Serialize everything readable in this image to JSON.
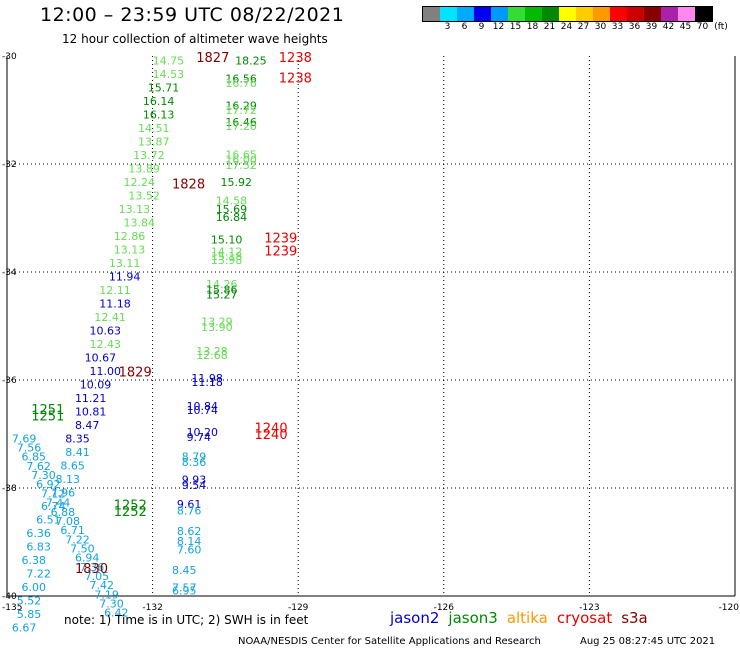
{
  "header": {
    "title": "12:00 – 23:59 UTC 08/22/2021",
    "subtitle": "12 hour collection of altimeter wave heights"
  },
  "legend": {
    "unit": "(ft)",
    "swatches": [
      {
        "color": "#808080",
        "label": ""
      },
      {
        "color": "#00e5ff",
        "label": "3"
      },
      {
        "color": "#00aaff",
        "label": "6"
      },
      {
        "color": "#0000ee",
        "label": "9"
      },
      {
        "color": "#0099ff",
        "label": "12"
      },
      {
        "color": "#33dd33",
        "label": "15"
      },
      {
        "color": "#00bb00",
        "label": "18"
      },
      {
        "color": "#008800",
        "label": "21"
      },
      {
        "color": "#ffff00",
        "label": "24"
      },
      {
        "color": "#ffcc00",
        "label": "27"
      },
      {
        "color": "#ff9900",
        "label": "30"
      },
      {
        "color": "#ff0000",
        "label": "33"
      },
      {
        "color": "#cc0000",
        "label": "36"
      },
      {
        "color": "#880000",
        "label": "39"
      },
      {
        "color": "#aa22aa",
        "label": "42"
      },
      {
        "color": "#ff88ee",
        "label": "45"
      },
      {
        "color": "#000000",
        "label": "70"
      }
    ]
  },
  "map": {
    "longitudes": [
      "-135",
      "-132",
      "-129",
      "-126",
      "-123",
      "-120"
    ],
    "latitudes": [
      "-30",
      "-32",
      "-34",
      "-36",
      "-38",
      "-40"
    ],
    "colors": {
      "light_green": "#66dd55",
      "green": "#008800",
      "blue": "#0000cc",
      "cyan": "#11a3dd",
      "red": "#ee0000",
      "dark_red": "#880000"
    },
    "pass_labels": [
      {
        "text": "1827",
        "x": -131.1,
        "y": -30.04,
        "color": "dark_red"
      },
      {
        "text": "1238",
        "x": -129.4,
        "y": -30.04,
        "color": "red"
      },
      {
        "text": "1238",
        "x": -129.4,
        "y": -30.42,
        "color": "red"
      },
      {
        "text": "1828",
        "x": -131.6,
        "y": -32.38,
        "color": "dark_red"
      },
      {
        "text": "1239",
        "x": -129.7,
        "y": -33.38,
        "color": "red"
      },
      {
        "text": "1239",
        "x": -129.7,
        "y": -33.62,
        "color": "red"
      },
      {
        "text": "1829",
        "x": -132.7,
        "y": -35.86,
        "color": "dark_red"
      },
      {
        "text": "1240",
        "x": -129.9,
        "y": -36.9,
        "color": "red"
      },
      {
        "text": "1240",
        "x": -129.9,
        "y": -37.02,
        "color": "red"
      },
      {
        "text": "1830",
        "x": -133.6,
        "y": -39.5,
        "color": "dark_red"
      },
      {
        "text": "1251",
        "x": -134.5,
        "y": -36.56,
        "color": "green"
      },
      {
        "text": "1251",
        "x": -134.5,
        "y": -36.68,
        "color": "green"
      },
      {
        "text": "1252",
        "x": -132.8,
        "y": -38.32,
        "color": "green"
      },
      {
        "text": "1252",
        "x": -132.8,
        "y": -38.44,
        "color": "green"
      }
    ],
    "points": [
      {
        "text": "14.75",
        "x": -132.0,
        "y": -30.08,
        "color": "light_green"
      },
      {
        "text": "14.53",
        "x": -132.0,
        "y": -30.33,
        "color": "light_green"
      },
      {
        "text": "15.71",
        "x": -132.1,
        "y": -30.58,
        "color": "green"
      },
      {
        "text": "16.14",
        "x": -132.2,
        "y": -30.83,
        "color": "green"
      },
      {
        "text": "16.13",
        "x": -132.2,
        "y": -31.08,
        "color": "green"
      },
      {
        "text": "14.51",
        "x": -132.3,
        "y": -31.33,
        "color": "light_green"
      },
      {
        "text": "13.87",
        "x": -132.3,
        "y": -31.58,
        "color": "light_green"
      },
      {
        "text": "13.72",
        "x": -132.4,
        "y": -31.83,
        "color": "light_green"
      },
      {
        "text": "13.89",
        "x": -132.5,
        "y": -32.08,
        "color": "light_green"
      },
      {
        "text": "12.24",
        "x": -132.6,
        "y": -32.33,
        "color": "light_green"
      },
      {
        "text": "13.52",
        "x": -132.5,
        "y": -32.58,
        "color": "light_green"
      },
      {
        "text": "13.13",
        "x": -132.7,
        "y": -32.83,
        "color": "light_green"
      },
      {
        "text": "13.84",
        "x": -132.6,
        "y": -33.08,
        "color": "light_green"
      },
      {
        "text": "12.86",
        "x": -132.8,
        "y": -33.33,
        "color": "light_green"
      },
      {
        "text": "13.13",
        "x": -132.8,
        "y": -33.58,
        "color": "light_green"
      },
      {
        "text": "13.11",
        "x": -132.9,
        "y": -33.83,
        "color": "light_green"
      },
      {
        "text": "11.94",
        "x": -132.9,
        "y": -34.08,
        "color": "blue"
      },
      {
        "text": "12.11",
        "x": -133.1,
        "y": -34.33,
        "color": "light_green"
      },
      {
        "text": "11.18",
        "x": -133.1,
        "y": -34.58,
        "color": "blue"
      },
      {
        "text": "12.41",
        "x": -133.2,
        "y": -34.83,
        "color": "light_green"
      },
      {
        "text": "10.63",
        "x": -133.3,
        "y": -35.08,
        "color": "blue"
      },
      {
        "text": "12.43",
        "x": -133.3,
        "y": -35.33,
        "color": "light_green"
      },
      {
        "text": "10.67",
        "x": -133.4,
        "y": -35.58,
        "color": "blue"
      },
      {
        "text": "11.00",
        "x": -133.3,
        "y": -35.83,
        "color": "blue"
      },
      {
        "text": "10.09",
        "x": -133.5,
        "y": -36.08,
        "color": "blue"
      },
      {
        "text": "11.21",
        "x": -133.6,
        "y": -36.33,
        "color": "blue"
      },
      {
        "text": "10.81",
        "x": -133.6,
        "y": -36.58,
        "color": "blue"
      },
      {
        "text": "8.47",
        "x": -133.6,
        "y": -36.83,
        "color": "blue"
      },
      {
        "text": "8.35",
        "x": -133.8,
        "y": -37.08,
        "color": "blue"
      },
      {
        "text": "8.41",
        "x": -133.8,
        "y": -37.33,
        "color": "cyan"
      },
      {
        "text": "8.65",
        "x": -133.9,
        "y": -37.58,
        "color": "cyan"
      },
      {
        "text": "8.13",
        "x": -134.0,
        "y": -37.83,
        "color": "cyan"
      },
      {
        "text": "7.96",
        "x": -134.1,
        "y": -38.08,
        "color": "cyan"
      },
      {
        "text": "6.74",
        "x": -134.3,
        "y": -38.33,
        "color": "cyan"
      },
      {
        "text": "6.51",
        "x": -134.4,
        "y": -38.58,
        "color": "cyan"
      },
      {
        "text": "6.36",
        "x": -134.6,
        "y": -38.83,
        "color": "cyan"
      },
      {
        "text": "6.83",
        "x": -134.6,
        "y": -39.08,
        "color": "cyan"
      },
      {
        "text": "6.38",
        "x": -134.7,
        "y": -39.33,
        "color": "cyan"
      },
      {
        "text": "7.22",
        "x": -134.6,
        "y": -39.58,
        "color": "cyan"
      },
      {
        "text": "6.00",
        "x": -134.7,
        "y": -39.83,
        "color": "cyan"
      },
      {
        "text": "5.52",
        "x": -134.8,
        "y": -40.08,
        "color": "cyan"
      },
      {
        "text": "5.85",
        "x": -134.8,
        "y": -40.33,
        "color": "cyan"
      },
      {
        "text": "6.67",
        "x": -134.9,
        "y": -40.58,
        "color": "cyan"
      },
      {
        "text": "7.69",
        "x": -134.9,
        "y": -37.08,
        "color": "cyan"
      },
      {
        "text": "7.56",
        "x": -134.8,
        "y": -37.25,
        "color": "cyan"
      },
      {
        "text": "6.85",
        "x": -134.7,
        "y": -37.42,
        "color": "cyan"
      },
      {
        "text": "7.62",
        "x": -134.6,
        "y": -37.59,
        "color": "cyan"
      },
      {
        "text": "7.30",
        "x": -134.5,
        "y": -37.76,
        "color": "cyan"
      },
      {
        "text": "6.92",
        "x": -134.4,
        "y": -37.93,
        "color": "cyan"
      },
      {
        "text": "7.12",
        "x": -134.3,
        "y": -38.1,
        "color": "cyan"
      },
      {
        "text": "7.44",
        "x": -134.2,
        "y": -38.27,
        "color": "cyan"
      },
      {
        "text": "6.88",
        "x": -134.1,
        "y": -38.44,
        "color": "cyan"
      },
      {
        "text": "7.08",
        "x": -134.0,
        "y": -38.61,
        "color": "cyan"
      },
      {
        "text": "6.71",
        "x": -133.9,
        "y": -38.78,
        "color": "cyan"
      },
      {
        "text": "7.22",
        "x": -133.8,
        "y": -38.95,
        "color": "cyan"
      },
      {
        "text": "7.50",
        "x": -133.7,
        "y": -39.12,
        "color": "cyan"
      },
      {
        "text": "6.94",
        "x": -133.6,
        "y": -39.29,
        "color": "cyan"
      },
      {
        "text": "7.36",
        "x": -133.5,
        "y": -39.46,
        "color": "cyan"
      },
      {
        "text": "7.05",
        "x": -133.4,
        "y": -39.63,
        "color": "cyan"
      },
      {
        "text": "7.42",
        "x": -133.3,
        "y": -39.8,
        "color": "cyan"
      },
      {
        "text": "7.19",
        "x": -133.2,
        "y": -39.97,
        "color": "cyan"
      },
      {
        "text": "7.30",
        "x": -133.1,
        "y": -40.14,
        "color": "cyan"
      },
      {
        "text": "6.42",
        "x": -133.0,
        "y": -40.31,
        "color": "cyan"
      },
      {
        "text": "18.25",
        "x": -130.3,
        "y": -30.08,
        "color": "green"
      },
      {
        "text": "16.56",
        "x": -130.5,
        "y": -30.42,
        "color": "green"
      },
      {
        "text": "16.76",
        "x": -130.5,
        "y": -30.5,
        "color": "light_green"
      },
      {
        "text": "16.29",
        "x": -130.5,
        "y": -30.92,
        "color": "green"
      },
      {
        "text": "17.72",
        "x": -130.5,
        "y": -31.0,
        "color": "light_green"
      },
      {
        "text": "16.46",
        "x": -130.5,
        "y": -31.22,
        "color": "green"
      },
      {
        "text": "17.20",
        "x": -130.5,
        "y": -31.3,
        "color": "light_green"
      },
      {
        "text": "16.65",
        "x": -130.5,
        "y": -31.82,
        "color": "light_green"
      },
      {
        "text": "16.00",
        "x": -130.5,
        "y": -31.92,
        "color": "light_green"
      },
      {
        "text": "17.52",
        "x": -130.5,
        "y": -32.02,
        "color": "light_green"
      },
      {
        "text": "15.92",
        "x": -130.6,
        "y": -32.33,
        "color": "green"
      },
      {
        "text": "14.58",
        "x": -130.7,
        "y": -32.68,
        "color": "light_green"
      },
      {
        "text": "15.69",
        "x": -130.7,
        "y": -32.83,
        "color": "green"
      },
      {
        "text": "16.84",
        "x": -130.7,
        "y": -32.98,
        "color": "green"
      },
      {
        "text": "15.10",
        "x": -130.8,
        "y": -33.4,
        "color": "green"
      },
      {
        "text": "14.12",
        "x": -130.8,
        "y": -33.62,
        "color": "light_green"
      },
      {
        "text": "15.18",
        "x": -130.8,
        "y": -33.7,
        "color": "light_green"
      },
      {
        "text": "13.98",
        "x": -130.8,
        "y": -33.78,
        "color": "light_green"
      },
      {
        "text": "14.26",
        "x": -130.9,
        "y": -34.22,
        "color": "light_green"
      },
      {
        "text": "15.86",
        "x": -130.9,
        "y": -34.32,
        "color": "green"
      },
      {
        "text": "15.27",
        "x": -130.9,
        "y": -34.42,
        "color": "green"
      },
      {
        "text": "13.29",
        "x": -131.0,
        "y": -34.92,
        "color": "light_green"
      },
      {
        "text": "13.90",
        "x": -131.0,
        "y": -35.02,
        "color": "light_green"
      },
      {
        "text": "13.28",
        "x": -131.1,
        "y": -35.46,
        "color": "light_green"
      },
      {
        "text": "12.68",
        "x": -131.1,
        "y": -35.54,
        "color": "light_green"
      },
      {
        "text": "11.98",
        "x": -131.2,
        "y": -35.96,
        "color": "blue"
      },
      {
        "text": "11.18",
        "x": -131.2,
        "y": -36.04,
        "color": "blue"
      },
      {
        "text": "10.84",
        "x": -131.3,
        "y": -36.48,
        "color": "blue"
      },
      {
        "text": "10.74",
        "x": -131.3,
        "y": -36.56,
        "color": "blue"
      },
      {
        "text": "10.20",
        "x": -131.3,
        "y": -36.96,
        "color": "blue"
      },
      {
        "text": "9.74",
        "x": -131.3,
        "y": -37.06,
        "color": "blue"
      },
      {
        "text": "8.79",
        "x": -131.4,
        "y": -37.42,
        "color": "cyan"
      },
      {
        "text": "8.36",
        "x": -131.4,
        "y": -37.52,
        "color": "cyan"
      },
      {
        "text": "9.93",
        "x": -131.4,
        "y": -37.84,
        "color": "blue"
      },
      {
        "text": "9.54",
        "x": -131.4,
        "y": -37.94,
        "color": "blue"
      },
      {
        "text": "9.61",
        "x": -131.5,
        "y": -38.3,
        "color": "blue"
      },
      {
        "text": "8.76",
        "x": -131.5,
        "y": -38.42,
        "color": "cyan"
      },
      {
        "text": "8.62",
        "x": -131.5,
        "y": -38.8,
        "color": "cyan"
      },
      {
        "text": "8.14",
        "x": -131.5,
        "y": -38.98,
        "color": "cyan"
      },
      {
        "text": "7.60",
        "x": -131.5,
        "y": -39.14,
        "color": "cyan"
      },
      {
        "text": "8.45",
        "x": -131.6,
        "y": -39.52,
        "color": "cyan"
      },
      {
        "text": "7.57",
        "x": -131.6,
        "y": -39.84,
        "color": "cyan"
      },
      {
        "text": "6.95",
        "x": -131.6,
        "y": -39.9,
        "color": "cyan"
      }
    ]
  },
  "note": "note:  1) Time is in UTC; 2) SWH is in feet",
  "satellites": [
    {
      "name": "jason2",
      "color": "#0000cc"
    },
    {
      "name": "jason3",
      "color": "#008800"
    },
    {
      "name": "altika",
      "color": "#ff9900"
    },
    {
      "name": "cryosat",
      "color": "#ee0000"
    },
    {
      "name": "s3a",
      "color": "#880000"
    }
  ],
  "footer": {
    "left": "NOAA/NESDIS Center for Satellite Applications and Research",
    "right": "Aug 25 08:27:45 UTC 2021"
  }
}
